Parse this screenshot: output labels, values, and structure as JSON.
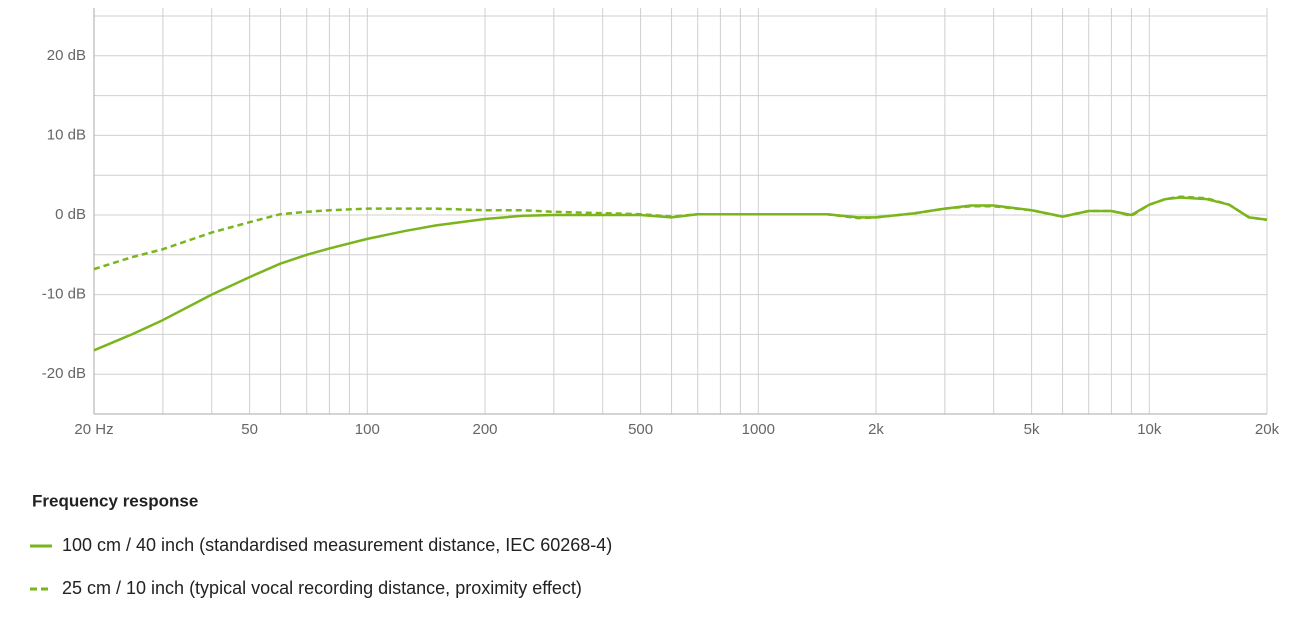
{
  "chart_data": {
    "type": "line",
    "legend_title": "Frequency response",
    "xscale": "log",
    "xlim": [
      20,
      20000
    ],
    "ylim": [
      -25,
      25
    ],
    "xticks": [
      {
        "value": 20,
        "label": "20 Hz"
      },
      50,
      100,
      200,
      500,
      1000,
      {
        "value": 2000,
        "label": "2k"
      },
      {
        "value": 5000,
        "label": "5k"
      },
      {
        "value": 10000,
        "label": "10k"
      },
      {
        "value": 20000,
        "label": "20k"
      }
    ],
    "xgrid": [
      20,
      30,
      40,
      50,
      60,
      70,
      80,
      90,
      100,
      200,
      300,
      400,
      500,
      600,
      700,
      800,
      900,
      1000,
      2000,
      3000,
      4000,
      5000,
      6000,
      7000,
      8000,
      9000,
      10000,
      20000
    ],
    "yticks": [
      {
        "value": 20,
        "label": "20 dB"
      },
      {
        "value": 10,
        "label": "10 dB"
      },
      {
        "value": 0,
        "label": "0 dB"
      },
      {
        "value": -10,
        "label": "-10 dB"
      },
      {
        "value": -20,
        "label": "-20 dB"
      }
    ],
    "ygrid": [
      25,
      20,
      15,
      10,
      5,
      0,
      -5,
      -10,
      -15,
      -20
    ],
    "grid": true,
    "x": [
      20,
      25,
      30,
      40,
      50,
      60,
      70,
      80,
      100,
      125,
      150,
      200,
      250,
      300,
      500,
      600,
      700,
      1000,
      1500,
      1800,
      2000,
      2500,
      3000,
      3500,
      4000,
      5000,
      6000,
      7000,
      8000,
      9000,
      10000,
      11000,
      12000,
      14000,
      16000,
      18000,
      20000
    ],
    "series": [
      {
        "name": "100 cm / 40 inch (standardised measurement distance, IEC 60268-4)",
        "color": "#7ab51d",
        "dashed": false,
        "values": [
          -17,
          -15,
          -13.2,
          -10,
          -7.8,
          -6.1,
          -5,
          -4.2,
          -3,
          -2,
          -1.3,
          -0.5,
          -0.1,
          0,
          0,
          -0.3,
          0.1,
          0.1,
          0.1,
          -0.3,
          -0.3,
          0.2,
          0.8,
          1.2,
          1.2,
          0.6,
          -0.2,
          0.5,
          0.5,
          0,
          1.3,
          2,
          2.2,
          2,
          1.3,
          -0.3,
          -0.6
        ]
      },
      {
        "name": "25 cm / 10 inch (typical vocal recording distance, proximity effect)",
        "color": "#7ab51d",
        "dashed": true,
        "values": [
          -6.8,
          -5.3,
          -4.3,
          -2.2,
          -0.9,
          0.1,
          0.4,
          0.6,
          0.8,
          0.8,
          0.8,
          0.6,
          0.6,
          0.4,
          0.1,
          -0.2,
          0.1,
          0.1,
          0.1,
          -0.4,
          -0.3,
          0.2,
          0.8,
          1.1,
          1.1,
          0.6,
          -0.2,
          0.5,
          0.5,
          -0.1,
          1.3,
          2,
          2.3,
          2.1,
          1.3,
          -0.3,
          -0.6
        ]
      }
    ]
  }
}
